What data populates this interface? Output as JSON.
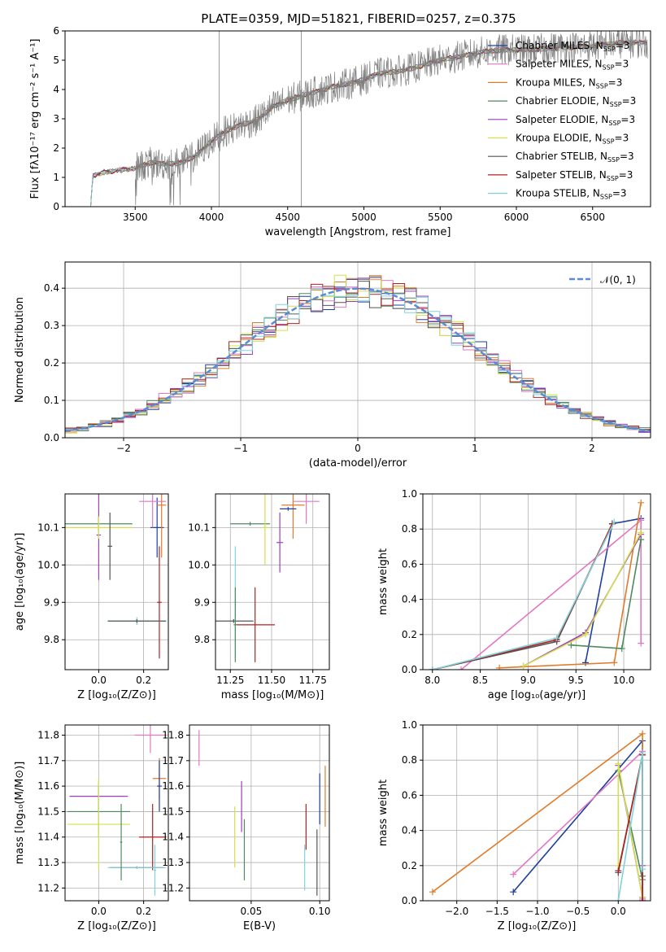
{
  "title": "PLATE=0359, MJD=51821, FIBERID=0257, z=0.375",
  "colors": {
    "Chabrier MILES": "#1f3fa0",
    "Salpeter MILES": "#e377c2",
    "Kroupa MILES": "#e07b2a",
    "Chabrier ELODIE": "#4f8a5f",
    "Salpeter ELODIE": "#9b3fc0",
    "Kroupa ELODIE": "#d4e04a",
    "Chabrier STELIB": "#555555",
    "Salpeter STELIB": "#b22222",
    "Kroupa STELIB": "#7fd3dc",
    "normal": "#5b8bd6",
    "spectrum": "#808080"
  },
  "chart_data": [
    {
      "id": "spectrum",
      "type": "line",
      "xlabel": "wavelength [Angstrom, rest frame]",
      "ylabel": "Flux [fλ10⁻¹⁷ erg cm⁻² s⁻¹ A⁻¹]",
      "xlim": [
        3040,
        6880
      ],
      "ylim": [
        0,
        6
      ],
      "xticks": [
        3500,
        4000,
        4500,
        5000,
        5500,
        6000,
        6500
      ],
      "yticks": [
        0,
        1,
        2,
        3,
        4,
        5,
        6
      ],
      "legend": "top-right",
      "legend_entries": [
        {
          "name": "Chabrier MILES",
          "sub": "SSP",
          "suffix": "=3"
        },
        {
          "name": "Salpeter MILES",
          "sub": "SSP",
          "suffix": "=3"
        },
        {
          "name": "Kroupa MILES",
          "sub": "SSP",
          "suffix": "=3"
        },
        {
          "name": "Chabrier ELODIE",
          "sub": "SSP",
          "suffix": "=3"
        },
        {
          "name": "Salpeter ELODIE",
          "sub": "SSP",
          "suffix": "=3"
        },
        {
          "name": "Kroupa ELODIE",
          "sub": "SSP",
          "suffix": "=3"
        },
        {
          "name": "Chabrier STELIB",
          "sub": "SSP",
          "suffix": "=3"
        },
        {
          "name": "Salpeter STELIB",
          "sub": "SSP",
          "suffix": "=3"
        },
        {
          "name": "Kroupa STELIB",
          "sub": "SSP",
          "suffix": "=3"
        }
      ],
      "continuum": [
        [
          3200,
          0.0
        ],
        [
          3210,
          0.0
        ],
        [
          3220,
          1.05
        ],
        [
          3300,
          1.18
        ],
        [
          3400,
          1.25
        ],
        [
          3500,
          1.32
        ],
        [
          3600,
          1.5
        ],
        [
          3700,
          1.45
        ],
        [
          3800,
          1.5
        ],
        [
          3900,
          1.75
        ],
        [
          4000,
          2.25
        ],
        [
          4100,
          2.6
        ],
        [
          4200,
          2.8
        ],
        [
          4300,
          2.95
        ],
        [
          4400,
          3.4
        ],
        [
          4500,
          3.65
        ],
        [
          4600,
          3.8
        ],
        [
          4700,
          3.95
        ],
        [
          4800,
          4.1
        ],
        [
          4900,
          4.2
        ],
        [
          5000,
          4.35
        ],
        [
          5100,
          4.55
        ],
        [
          5200,
          4.6
        ],
        [
          5300,
          4.7
        ],
        [
          5400,
          4.85
        ],
        [
          5500,
          5.0
        ],
        [
          5600,
          5.1
        ],
        [
          5700,
          5.2
        ],
        [
          5800,
          5.3
        ],
        [
          5900,
          5.35
        ],
        [
          6000,
          5.35
        ],
        [
          6100,
          5.35
        ],
        [
          6200,
          5.4
        ],
        [
          6300,
          5.45
        ],
        [
          6400,
          5.45
        ],
        [
          6500,
          5.5
        ],
        [
          6600,
          5.55
        ],
        [
          6700,
          5.6
        ],
        [
          6800,
          5.6
        ]
      ]
    },
    {
      "id": "residual-hist",
      "type": "histogram",
      "xlabel": "(data-model)/error",
      "ylabel": "Normed distribution",
      "xlim": [
        -2.5,
        2.5
      ],
      "ylim": [
        0,
        0.47
      ],
      "xticks": [
        -2,
        -1,
        0,
        1,
        2
      ],
      "yticks": [
        0.0,
        0.1,
        0.2,
        0.3,
        0.4
      ],
      "legend": "top-right",
      "legend_label": "𝒩(0, 1)",
      "bin_width": 0.1
    },
    {
      "id": "age-vs-Z",
      "type": "errorbar",
      "xlabel": "Z [log₁₀(Z/Z⊙)]",
      "ylabel": "age  [log₁₀(age/yr)]",
      "xlim": [
        -0.15,
        0.31
      ],
      "ylim": [
        9.72,
        10.19
      ],
      "xticks": [
        0.0,
        0.2
      ],
      "yticks": [
        9.8,
        9.9,
        10.0,
        10.1
      ],
      "series": [
        {
          "name": "Chabrier MILES",
          "x": 0.26,
          "xerr": 0.03,
          "y": 10.1,
          "yerr": 0.08
        },
        {
          "name": "Salpeter MILES",
          "x": 0.24,
          "xerr": 0.06,
          "y": 10.17,
          "yerr": 0.07
        },
        {
          "name": "Kroupa MILES",
          "x": 0.28,
          "xerr": 0.02,
          "y": 10.16,
          "yerr": 0.14
        },
        {
          "name": "Chabrier ELODIE",
          "x": 0.0,
          "xerr": 0.15,
          "y": 10.11,
          "yerr": 0.02
        },
        {
          "name": "Salpeter ELODIE",
          "x": 0.0,
          "xerr": 0.01,
          "y": 10.08,
          "yerr": 0.12
        },
        {
          "name": "Kroupa ELODIE",
          "x": 0.0,
          "xerr": 0.15,
          "y": 10.1,
          "yerr": 0.03
        },
        {
          "name": "Chabrier STELIB",
          "x": 0.05,
          "xerr": 0.01,
          "y": 10.05,
          "yerr": 0.09
        },
        {
          "name": "Salpeter STELIB",
          "x": 0.27,
          "xerr": 0.01,
          "y": 9.9,
          "yerr": 0.15
        },
        {
          "name": "Kroupa STELIB",
          "x": 0.17,
          "xerr": 0.13,
          "y": 9.85,
          "yerr": 0.01
        },
        {
          "name": "Chabrier STELIB",
          "x": 0.17,
          "xerr": 0.13,
          "y": 9.85,
          "yerr": 0.005
        }
      ]
    },
    {
      "id": "age-vs-mass",
      "type": "errorbar",
      "xlabel": "mass [log₁₀(M/M⊙)]",
      "ylabel": "",
      "xlim": [
        11.16,
        11.85
      ],
      "ylim": [
        9.72,
        10.19
      ],
      "xticks": [
        11.25,
        11.5,
        11.75
      ],
      "yticks": [
        9.8,
        9.9,
        10.0,
        10.1
      ],
      "series": [
        {
          "name": "Salpeter MILES",
          "x": 11.71,
          "xerr": 0.08,
          "y": 10.17,
          "yerr": 0.06
        },
        {
          "name": "Kroupa MILES",
          "x": 11.63,
          "xerr": 0.07,
          "y": 10.16,
          "yerr": 0.09
        },
        {
          "name": "Chabrier MILES",
          "x": 11.6,
          "xerr": 0.05,
          "y": 10.15,
          "yerr": 0.005
        },
        {
          "name": "Chabrier ELODIE",
          "x": 11.37,
          "xerr": 0.12,
          "y": 10.11,
          "yerr": 0.005
        },
        {
          "name": "Salpeter ELODIE",
          "x": 11.55,
          "xerr": 0.02,
          "y": 10.06,
          "yerr": 0.08
        },
        {
          "name": "Kroupa ELODIE",
          "x": 11.46,
          "xerr": 0.02,
          "y": 10.1,
          "yerr": 0.1
        },
        {
          "name": "Chabrier STELIB",
          "x": 11.27,
          "xerr": 0.12,
          "y": 9.85,
          "yerr": 0.005
        },
        {
          "name": "Salpeter STELIB",
          "x": 11.4,
          "xerr": 0.12,
          "y": 9.84,
          "yerr": 0.1
        },
        {
          "name": "Kroupa STELIB",
          "x": 11.28,
          "xerr": 0.01,
          "y": 9.9,
          "yerr": 0.15
        },
        {
          "name": "Chabrier ELODIE",
          "x": 11.28,
          "xerr": 0.01,
          "y": 9.84,
          "yerr": 0.1
        }
      ]
    },
    {
      "id": "massweight-vs-age",
      "type": "line",
      "xlabel": "age  [log₁₀(age/yr)]",
      "ylabel": "mass weight",
      "xlim": [
        7.9,
        10.28
      ],
      "ylim": [
        0,
        1
      ],
      "xticks": [
        8.0,
        8.5,
        9.0,
        9.5,
        10.0
      ],
      "yticks": [
        0.0,
        0.2,
        0.4,
        0.6,
        0.8,
        1.0
      ],
      "series": [
        {
          "name": "Chabrier MILES",
          "x": [
            9.6,
            9.88,
            10.18
          ],
          "y": [
            0.04,
            0.83,
            0.86
          ]
        },
        {
          "name": "Salpeter MILES",
          "x": [
            8.3,
            10.18,
            10.18
          ],
          "y": [
            0.0,
            0.85,
            0.15
          ]
        },
        {
          "name": "Kroupa MILES",
          "x": [
            8.7,
            9.9,
            10.18
          ],
          "y": [
            0.01,
            0.04,
            0.95
          ]
        },
        {
          "name": "Chabrier ELODIE",
          "x": [
            9.45,
            9.98,
            10.18
          ],
          "y": [
            0.14,
            0.12,
            0.74
          ]
        },
        {
          "name": "Salpeter ELODIE",
          "x": [
            8.95,
            9.6,
            10.18
          ],
          "y": [
            0.02,
            0.21,
            0.77
          ]
        },
        {
          "name": "Kroupa ELODIE",
          "x": [
            8.95,
            9.6,
            10.18
          ],
          "y": [
            0.02,
            0.2,
            0.78
          ]
        },
        {
          "name": "Chabrier STELIB",
          "x": [
            8.0,
            9.3,
            9.88
          ],
          "y": [
            0.0,
            0.16,
            0.83
          ]
        },
        {
          "name": "Salpeter STELIB",
          "x": [
            8.0,
            9.3,
            9.88
          ],
          "y": [
            0.0,
            0.17,
            0.83
          ]
        },
        {
          "name": "Kroupa STELIB",
          "x": [
            8.0,
            9.3,
            9.9
          ],
          "y": [
            0.0,
            0.18,
            0.84
          ]
        }
      ]
    },
    {
      "id": "mass-vs-Z",
      "type": "errorbar",
      "xlabel": "Z [log₁₀(Z/Z⊙)]",
      "ylabel": "mass [log₁₀(M/M⊙)]",
      "xlim": [
        -0.15,
        0.31
      ],
      "ylim": [
        11.15,
        11.84
      ],
      "xticks": [
        0.0,
        0.2
      ],
      "yticks": [
        11.2,
        11.3,
        11.4,
        11.5,
        11.6,
        11.7,
        11.8
      ],
      "series": [
        {
          "name": "Salpeter MILES",
          "x": 0.23,
          "xerr": 0.07,
          "y": 11.8,
          "yerr": 0.07
        },
        {
          "name": "Kroupa MILES",
          "x": 0.27,
          "xerr": 0.03,
          "y": 11.63,
          "yerr": 0.08
        },
        {
          "name": "Chabrier MILES",
          "x": 0.27,
          "xerr": 0.01,
          "y": 11.6,
          "yerr": 0.1
        },
        {
          "name": "Salpeter ELODIE",
          "x": 0.0,
          "xerr": 0.13,
          "y": 11.56,
          "yerr": 0.06
        },
        {
          "name": "Chabrier ELODIE",
          "x": 0.0,
          "xerr": 0.14,
          "y": 11.5,
          "yerr": 0.1
        },
        {
          "name": "Kroupa ELODIE",
          "x": 0.0,
          "xerr": 0.14,
          "y": 11.45,
          "yerr": 0.18
        },
        {
          "name": "Salpeter STELIB",
          "x": 0.24,
          "xerr": 0.06,
          "y": 11.4,
          "yerr": 0.13
        },
        {
          "name": "Chabrier STELIB",
          "x": 0.17,
          "xerr": 0.12,
          "y": 11.28,
          "yerr": 0.005
        },
        {
          "name": "Kroupa STELIB",
          "x": 0.17,
          "xerr": 0.13,
          "y": 11.28,
          "yerr": 0.005
        },
        {
          "name": "Chabrier ELODIE",
          "x": 0.1,
          "xerr": 0.005,
          "y": 11.38,
          "yerr": 0.15
        },
        {
          "name": "Kroupa STELIB",
          "x": 0.25,
          "xerr": 0.005,
          "y": 11.27,
          "yerr": 0.1
        }
      ]
    },
    {
      "id": "mass-vs-ebv",
      "type": "errorbar",
      "xlabel": "E(B-V)",
      "ylabel": "",
      "xlim": [
        0.005,
        0.107
      ],
      "ylim": [
        11.15,
        11.84
      ],
      "xticks": [
        0.05,
        0.1
      ],
      "yticks": [
        11.2,
        11.3,
        11.4,
        11.5,
        11.6,
        11.7,
        11.8
      ],
      "series": [
        {
          "name": "Salpeter MILES",
          "x": 0.012,
          "xerr": 0.0,
          "y": 11.75,
          "yerr": 0.07
        },
        {
          "name": "Chabrier MILES",
          "x": 0.1,
          "xerr": 0.0,
          "y": 11.55,
          "yerr": 0.1
        },
        {
          "name": "Kroupa MILES",
          "x": 0.104,
          "xerr": 0.0,
          "y": 11.56,
          "yerr": 0.12
        },
        {
          "name": "Salpeter ELODIE",
          "x": 0.043,
          "xerr": 0.0,
          "y": 11.52,
          "yerr": 0.1
        },
        {
          "name": "Kroupa ELODIE",
          "x": 0.038,
          "xerr": 0.0,
          "y": 11.4,
          "yerr": 0.12
        },
        {
          "name": "Chabrier ELODIE",
          "x": 0.045,
          "xerr": 0.0,
          "y": 11.35,
          "yerr": 0.12
        },
        {
          "name": "Salpeter STELIB",
          "x": 0.09,
          "xerr": 0.0,
          "y": 11.44,
          "yerr": 0.09
        },
        {
          "name": "Chabrier STELIB",
          "x": 0.098,
          "xerr": 0.0,
          "y": 11.3,
          "yerr": 0.13
        },
        {
          "name": "Kroupa STELIB",
          "x": 0.089,
          "xerr": 0.0,
          "y": 11.28,
          "yerr": 0.09
        }
      ]
    },
    {
      "id": "massweight-vs-Z",
      "type": "line",
      "xlabel": "Z [log₁₀(Z/Z⊙)]",
      "ylabel": "mass weight",
      "xlim": [
        -2.42,
        0.4
      ],
      "ylim": [
        0,
        1
      ],
      "xticks": [
        -2.0,
        -1.5,
        -1.0,
        -0.5,
        0.0
      ],
      "yticks": [
        0.0,
        0.2,
        0.4,
        0.6,
        0.8,
        1.0
      ],
      "series": [
        {
          "name": "Chabrier MILES",
          "x": [
            -1.3,
            0.3,
            0.3
          ],
          "y": [
            0.05,
            0.91,
            0.02
          ]
        },
        {
          "name": "Salpeter MILES",
          "x": [
            -1.3,
            0.3,
            0.3
          ],
          "y": [
            0.15,
            0.85,
            0.01
          ]
        },
        {
          "name": "Kroupa MILES",
          "x": [
            -2.3,
            0.3,
            0.3
          ],
          "y": [
            0.05,
            0.95,
            0.0
          ]
        },
        {
          "name": "Chabrier ELODIE",
          "x": [
            0.0,
            0.3,
            0.3
          ],
          "y": [
            0.74,
            0.12,
            0.14
          ]
        },
        {
          "name": "Salpeter ELODIE",
          "x": [
            0.0,
            0.3,
            0.3
          ],
          "y": [
            0.77,
            0.02,
            0.2
          ]
        },
        {
          "name": "Kroupa ELODIE",
          "x": [
            0.0,
            0.0,
            0.3
          ],
          "y": [
            0.2,
            0.78,
            0.02
          ]
        },
        {
          "name": "Chabrier STELIB",
          "x": [
            0.0,
            0.3,
            0.3
          ],
          "y": [
            0.16,
            0.83,
            0.0
          ]
        },
        {
          "name": "Salpeter STELIB",
          "x": [
            0.0,
            0.3,
            0.3
          ],
          "y": [
            0.17,
            0.83,
            0.0
          ]
        },
        {
          "name": "Kroupa STELIB",
          "x": [
            0.0,
            0.3,
            0.3
          ],
          "y": [
            0.0,
            0.84,
            0.18
          ]
        }
      ]
    }
  ]
}
